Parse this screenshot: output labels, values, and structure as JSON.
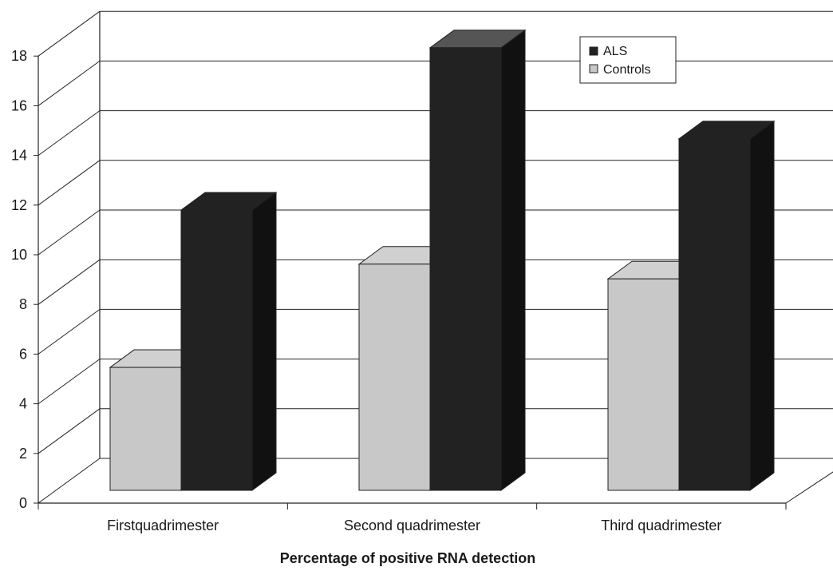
{
  "chart_data": {
    "type": "bar",
    "title": "",
    "xlabel": "Percentage of positive RNA detection",
    "ylabel": "",
    "ylim": [
      0,
      18
    ],
    "yticks": [
      "0",
      "2",
      "4",
      "6",
      "8",
      "10",
      "12",
      "14",
      "16",
      "18"
    ],
    "categories": [
      "Firstquadrimester",
      "Second quadrimester",
      "Third quadrimester"
    ],
    "series": [
      {
        "name": "Controls",
        "values": [
          5,
          9.2,
          8.6
        ],
        "color": "#c8c8c8"
      },
      {
        "name": "ALS",
        "values": [
          11.4,
          18,
          14.3
        ],
        "color": "#222222"
      }
    ],
    "grid": true,
    "legend_position": "top-right",
    "style": "3d"
  }
}
